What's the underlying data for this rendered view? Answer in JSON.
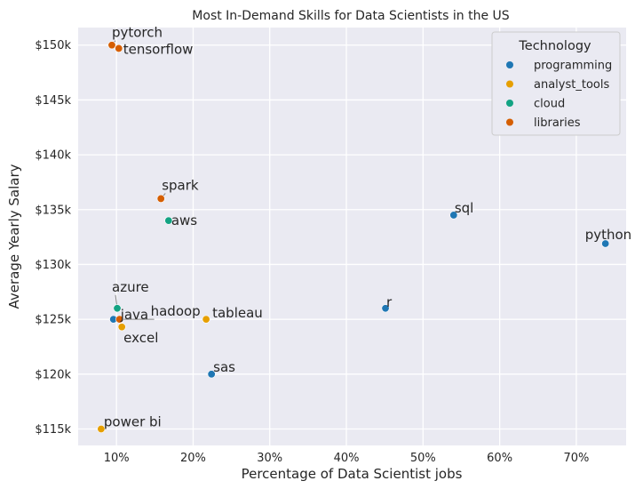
{
  "chart_data": {
    "type": "scatter",
    "title": "Most In-Demand Skills for Data Scientists in the US",
    "xlabel": "Percentage of Data Scientist jobs",
    "ylabel": "Average Yearly Salary",
    "xlim": [
      5,
      76.5
    ],
    "ylim": [
      113500,
      151600
    ],
    "x_ticks": [
      10,
      20,
      30,
      40,
      50,
      60,
      70
    ],
    "x_tick_labels": [
      "10%",
      "20%",
      "30%",
      "40%",
      "50%",
      "60%",
      "70%"
    ],
    "y_ticks": [
      115000,
      120000,
      125000,
      130000,
      135000,
      140000,
      145000,
      150000
    ],
    "y_tick_labels": [
      "$115k",
      "$120k",
      "$125k",
      "$130k",
      "$135k",
      "$140k",
      "$145k",
      "$150k"
    ],
    "grid": true,
    "legend": {
      "title": "Technology",
      "placement": "top-right",
      "entries": [
        {
          "name": "programming",
          "color": "#1f77b4"
        },
        {
          "name": "analyst_tools",
          "color": "#e69f00"
        },
        {
          "name": "cloud",
          "color": "#13a383"
        },
        {
          "name": "libraries",
          "color": "#d55e00"
        }
      ]
    },
    "points": [
      {
        "label": "python",
        "x": 73.8,
        "y": 131900,
        "group": "programming"
      },
      {
        "label": "sql",
        "x": 54.0,
        "y": 134500,
        "group": "programming"
      },
      {
        "label": "r",
        "x": 45.1,
        "y": 126000,
        "group": "programming"
      },
      {
        "label": "sas",
        "x": 22.4,
        "y": 120000,
        "group": "programming"
      },
      {
        "label": "java",
        "x": 9.6,
        "y": 125000,
        "group": "programming"
      },
      {
        "label": "tableau",
        "x": 21.7,
        "y": 125000,
        "group": "analyst_tools"
      },
      {
        "label": "excel",
        "x": 10.7,
        "y": 124300,
        "group": "analyst_tools"
      },
      {
        "label": "power bi",
        "x": 8.0,
        "y": 115000,
        "group": "analyst_tools"
      },
      {
        "label": "aws",
        "x": 16.8,
        "y": 134000,
        "group": "cloud"
      },
      {
        "label": "azure",
        "x": 10.1,
        "y": 126000,
        "group": "cloud"
      },
      {
        "label": "pytorch",
        "x": 9.4,
        "y": 150000,
        "group": "libraries"
      },
      {
        "label": "tensorflow",
        "x": 10.3,
        "y": 149700,
        "group": "libraries"
      },
      {
        "label": "spark",
        "x": 15.8,
        "y": 136000,
        "group": "libraries"
      },
      {
        "label": "hadoop",
        "x": 10.4,
        "y": 125000,
        "group": "libraries"
      }
    ]
  }
}
